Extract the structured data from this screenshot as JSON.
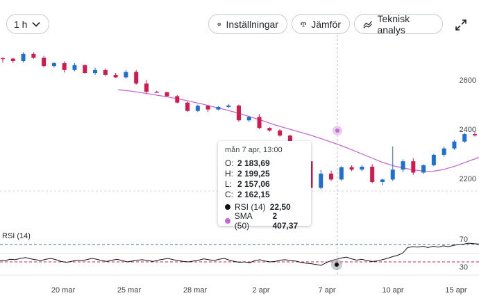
{
  "toolbar": {
    "interval_label": "1 h",
    "settings_label": "Inställningar",
    "compare_label": "Jämför",
    "analysis_label": "Teknisk analys"
  },
  "colors": {
    "up": "#1f6fd1",
    "down": "#d01b4f",
    "sma": "#c46ad1",
    "rsi": "#111111",
    "rsi_upper_line": "#3a6fb0",
    "rsi_lower_line": "#d01b4f"
  },
  "icons": [
    "chevron-down-icon",
    "gear-icon",
    "scales-icon",
    "trend-line-icon",
    "expand-icon"
  ],
  "tooltip": {
    "date": "mån 7 apr, 13:00",
    "o_label": "O:",
    "o_value": "2 183,69",
    "h_label": "H:",
    "h_value": "2 199,25",
    "l_label": "L:",
    "l_value": "2 157,06",
    "c_label": "C:",
    "c_value": "2 162,15",
    "rsi_label": "RSI (14)",
    "rsi_value": "22,50",
    "sma_label": "SMA (50)",
    "sma_value": "2 407,37"
  },
  "rsi_panel": {
    "title": "RSI (14)"
  },
  "chart_data": {
    "type": "candlestick",
    "x_labels": [
      "20 mar",
      "25 mar",
      "28 mar",
      "2 apr",
      "7 apr",
      "10 apr",
      "15 apr"
    ],
    "y_ticks": [
      2200,
      2400,
      2600
    ],
    "y_tick_labels": [
      "2200",
      "2400",
      "2600"
    ],
    "ylim": [
      2080,
      2740
    ],
    "rsi": {
      "levels": [
        70,
        30
      ],
      "level_labels": [
        "70",
        "30"
      ],
      "ylim": [
        18,
        78
      ],
      "values": [
        34,
        33,
        36,
        35,
        38,
        40,
        37,
        35,
        33,
        36,
        38,
        35,
        31,
        29,
        31,
        34,
        33,
        35,
        38,
        36,
        33,
        31,
        34,
        36,
        33,
        30,
        32,
        34,
        35,
        33,
        31,
        34,
        36,
        38,
        35,
        33,
        31,
        30,
        32,
        34,
        37,
        35,
        33,
        36,
        38,
        34,
        31,
        29,
        30,
        28,
        33,
        35,
        32,
        30,
        31,
        34,
        35,
        33,
        32,
        29,
        27,
        26,
        24,
        22,
        28,
        33,
        36,
        39,
        41,
        37,
        34,
        36,
        33,
        31,
        32,
        35,
        38,
        42,
        45,
        50,
        63,
        65,
        64,
        66,
        63,
        66,
        64,
        67,
        65,
        68,
        70,
        71,
        73,
        72,
        71
      ]
    },
    "sma50": [
      2560,
      2555,
      2548,
      2540,
      2532,
      2523,
      2513,
      2502,
      2490,
      2478,
      2465,
      2450,
      2435,
      2418,
      2404,
      2390,
      2376,
      2360,
      2343,
      2325,
      2305,
      2285,
      2265,
      2250,
      2240,
      2232,
      2228,
      2236,
      2250,
      2268,
      2286
    ],
    "candles": [
      [
        2688,
        2692,
        2670,
        2686
      ],
      [
        2686,
        2690,
        2668,
        2676
      ],
      [
        2676,
        2712,
        2670,
        2705
      ],
      [
        2705,
        2712,
        2685,
        2690
      ],
      [
        2690,
        2698,
        2650,
        2656
      ],
      [
        2656,
        2672,
        2650,
        2668
      ],
      [
        2668,
        2675,
        2630,
        2640
      ],
      [
        2640,
        2668,
        2635,
        2660
      ],
      [
        2660,
        2662,
        2625,
        2628
      ],
      [
        2628,
        2650,
        2620,
        2640
      ],
      [
        2640,
        2646,
        2615,
        2620
      ],
      [
        2620,
        2628,
        2608,
        2610
      ],
      [
        2610,
        2640,
        2604,
        2632
      ],
      [
        2632,
        2640,
        2580,
        2585
      ],
      [
        2585,
        2600,
        2545,
        2552
      ],
      [
        2552,
        2556,
        2548,
        2550
      ],
      [
        2550,
        2552,
        2530,
        2534
      ],
      [
        2534,
        2538,
        2505,
        2508
      ],
      [
        2508,
        2512,
        2470,
        2474
      ],
      [
        2474,
        2500,
        2470,
        2495
      ],
      [
        2495,
        2498,
        2470,
        2480
      ],
      [
        2480,
        2494,
        2476,
        2490
      ],
      [
        2490,
        2502,
        2486,
        2496
      ],
      [
        2496,
        2500,
        2430,
        2436
      ],
      [
        2436,
        2454,
        2430,
        2450
      ],
      [
        2450,
        2462,
        2400,
        2405
      ],
      [
        2405,
        2408,
        2390,
        2395
      ],
      [
        2395,
        2400,
        2370,
        2374
      ],
      [
        2374,
        2378,
        2300,
        2306
      ],
      [
        2306,
        2312,
        2262,
        2270
      ],
      [
        2270,
        2290,
        2150,
        2162
      ],
      [
        2162,
        2234,
        2156,
        2220
      ],
      [
        2220,
        2232,
        2190,
        2196
      ],
      [
        2196,
        2250,
        2190,
        2246
      ],
      [
        2246,
        2254,
        2230,
        2236
      ],
      [
        2236,
        2254,
        2230,
        2248
      ],
      [
        2248,
        2258,
        2180,
        2186
      ],
      [
        2186,
        2200,
        2172,
        2196
      ],
      [
        2196,
        2330,
        2190,
        2236
      ],
      [
        2236,
        2278,
        2225,
        2270
      ],
      [
        2270,
        2282,
        2215,
        2224
      ],
      [
        2224,
        2258,
        2218,
        2254
      ],
      [
        2254,
        2300,
        2250,
        2296
      ],
      [
        2296,
        2330,
        2288,
        2322
      ],
      [
        2322,
        2356,
        2316,
        2350
      ],
      [
        2350,
        2386,
        2344,
        2380
      ],
      [
        2380,
        2388,
        2370,
        2375
      ]
    ]
  }
}
